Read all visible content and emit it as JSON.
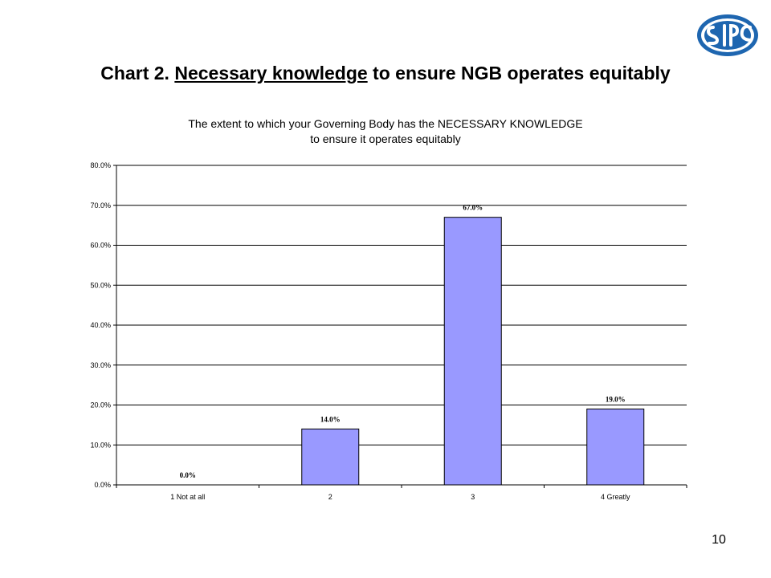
{
  "slide": {
    "title_prefix": "Chart 2. ",
    "title_underlined": "Necessary knowledge",
    "title_suffix": " to ensure NGB operates equitably",
    "page_number": "10"
  },
  "logo": {
    "icon": "sirc-logo-icon",
    "text": "SIRC",
    "color": "#1E66B0"
  },
  "chart_data": {
    "type": "bar",
    "title": [
      "The extent to which your Governing Body has the NECESSARY KNOWLEDGE",
      "to ensure it operates equitably"
    ],
    "categories": [
      "1 Not at all",
      "2",
      "3",
      "4 Greatly"
    ],
    "values": [
      0.0,
      14.0,
      67.0,
      19.0
    ],
    "data_labels": [
      "0.0%",
      "14.0%",
      "67.0%",
      "19.0%"
    ],
    "ylim": [
      0,
      80
    ],
    "yticks": [
      0,
      10,
      20,
      30,
      40,
      50,
      60,
      70,
      80
    ],
    "ytick_labels": [
      "0.0%",
      "10.0%",
      "20.0%",
      "30.0%",
      "40.0%",
      "50.0%",
      "60.0%",
      "70.0%",
      "80.0%"
    ],
    "xlabel": "",
    "ylabel": "",
    "grid": true,
    "legend": false,
    "bar_color": "#9999FF"
  }
}
